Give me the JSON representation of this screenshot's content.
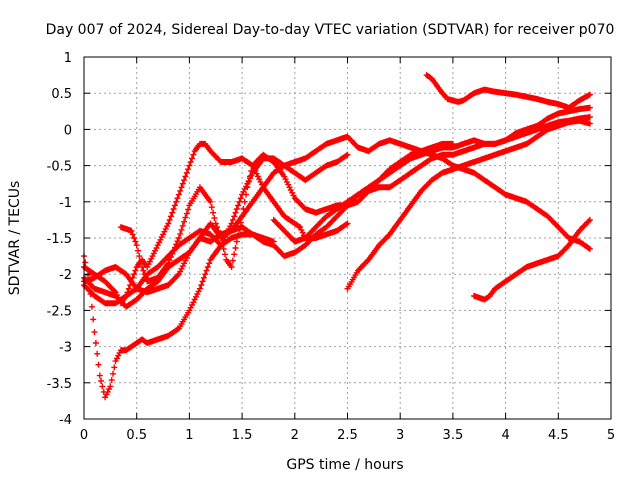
{
  "chart_data": {
    "type": "scatter",
    "title": "Day 007 of 2024, Sidereal Day-to-day VTEC variation (SDTVAR) for receiver p070",
    "xlabel": "GPS time / hours",
    "ylabel": "SDTVAR / TECUs",
    "xlim": [
      0,
      5
    ],
    "ylim": [
      -4,
      1
    ],
    "xticks": [
      0,
      0.5,
      1,
      1.5,
      2,
      2.5,
      3,
      3.5,
      4,
      4.5,
      5
    ],
    "xtick_labels": [
      "0",
      "0.5",
      "1",
      "1.5",
      "2",
      "2.5",
      "3",
      "3.5",
      "4",
      "4.5",
      "5"
    ],
    "yticks": [
      1,
      0.5,
      0,
      -0.5,
      -1,
      -1.5,
      -2,
      -2.5,
      -3,
      -3.5,
      -4
    ],
    "ytick_labels": [
      "1",
      "0.5",
      "0",
      "-0.5",
      "-1",
      "-1.5",
      "-2",
      "-2.5",
      "-3",
      "-3.5",
      "-4"
    ],
    "grid": true,
    "marker": "+",
    "color": "#ff0000",
    "series": [
      {
        "name": "s1",
        "x": [
          0.0,
          0.05,
          0.1,
          0.15,
          0.2,
          0.25,
          0.3,
          0.35,
          0.4,
          0.45,
          0.5,
          0.55,
          0.6,
          0.7,
          0.8,
          0.9,
          1.0,
          1.1,
          1.2,
          1.3,
          1.4,
          1.5,
          1.6,
          1.7,
          1.8
        ],
        "y": [
          -1.75,
          -2.1,
          -2.8,
          -3.4,
          -3.7,
          -3.55,
          -3.2,
          -3.05,
          -3.05,
          -3.0,
          -2.95,
          -2.9,
          -2.95,
          -2.9,
          -2.85,
          -2.75,
          -2.5,
          -2.2,
          -1.8,
          -1.6,
          -1.5,
          -1.45,
          -1.45,
          -1.5,
          -1.55
        ]
      },
      {
        "name": "s2",
        "x": [
          0.0,
          0.1,
          0.2,
          0.3,
          0.35,
          0.4,
          0.45,
          0.5,
          0.55,
          0.6,
          0.7,
          0.8,
          0.9,
          1.0,
          1.05,
          1.1,
          1.15,
          1.2,
          1.3,
          1.4,
          1.5,
          1.6,
          1.7,
          1.8,
          1.9,
          2.0,
          2.05,
          2.1,
          2.2,
          2.3,
          2.4,
          2.5
        ],
        "y": [
          -1.9,
          -2.0,
          -2.1,
          -2.25,
          -2.4,
          -2.3,
          -2.1,
          -1.9,
          -1.8,
          -1.9,
          -1.6,
          -1.3,
          -0.9,
          -0.5,
          -0.3,
          -0.2,
          -0.2,
          -0.3,
          -0.45,
          -0.45,
          -0.4,
          -0.5,
          -0.8,
          -1.0,
          -1.2,
          -1.3,
          -1.35,
          -1.5,
          -1.5,
          -1.45,
          -1.4,
          -1.3
        ]
      },
      {
        "name": "s3",
        "x": [
          0.0,
          0.1,
          0.2,
          0.3,
          0.4,
          0.5,
          0.6,
          0.7,
          0.8,
          0.9,
          1.0,
          1.1,
          1.2,
          1.3,
          1.4,
          1.5,
          1.6,
          1.7,
          1.8,
          1.9,
          2.0,
          2.1,
          2.2,
          2.3,
          2.4,
          2.5
        ],
        "y": [
          -2.15,
          -2.3,
          -2.4,
          -2.4,
          -2.3,
          -2.2,
          -2.0,
          -1.9,
          -1.75,
          -1.6,
          -1.5,
          -1.4,
          -1.45,
          -1.6,
          -1.3,
          -0.9,
          -0.6,
          -0.4,
          -0.4,
          -0.5,
          -0.6,
          -0.7,
          -0.6,
          -0.5,
          -0.45,
          -0.35
        ]
      },
      {
        "name": "s4",
        "x": [
          0.0,
          0.1,
          0.2,
          0.3,
          0.4,
          0.5,
          0.6,
          0.7,
          0.8,
          0.9,
          1.0,
          1.1,
          1.2,
          1.3,
          1.4,
          1.5,
          1.6,
          1.7,
          1.8,
          1.9,
          2.0,
          2.1,
          2.2,
          2.3,
          2.4,
          2.5,
          2.6,
          2.7,
          2.8,
          2.9,
          3.0,
          3.1,
          3.2,
          3.3,
          3.4,
          3.5
        ],
        "y": [
          -2.05,
          -2.2,
          -2.25,
          -2.3,
          -2.45,
          -2.35,
          -2.2,
          -2.1,
          -1.9,
          -1.8,
          -1.7,
          -1.5,
          -1.3,
          -1.5,
          -1.4,
          -1.2,
          -1.0,
          -0.8,
          -0.6,
          -0.5,
          -0.45,
          -0.4,
          -0.3,
          -0.2,
          -0.15,
          -0.1,
          -0.25,
          -0.3,
          -0.2,
          -0.15,
          -0.2,
          -0.25,
          -0.3,
          -0.25,
          -0.2,
          -0.2
        ]
      },
      {
        "name": "s5",
        "x": [
          0.35,
          0.45,
          0.5,
          0.55,
          0.6,
          0.7,
          0.8,
          0.9,
          1.0,
          1.1,
          1.2,
          1.25,
          1.3,
          1.35,
          1.4,
          1.45,
          1.5,
          1.55,
          1.6,
          1.7,
          1.8,
          1.9,
          2.0,
          2.1,
          2.2,
          2.3,
          2.4,
          2.5,
          2.6,
          2.7,
          2.8,
          2.9,
          3.0,
          3.1,
          3.2,
          3.3,
          3.4,
          3.5,
          3.6,
          3.7,
          3.8,
          3.9,
          4.0,
          4.1,
          4.2,
          4.3,
          4.4,
          4.5,
          4.6,
          4.7,
          4.8
        ],
        "y": [
          -1.35,
          -1.4,
          -1.6,
          -1.9,
          -2.1,
          -2.05,
          -1.85,
          -1.5,
          -1.05,
          -0.8,
          -1.0,
          -1.3,
          -1.5,
          -1.8,
          -1.9,
          -1.55,
          -1.2,
          -0.8,
          -0.5,
          -0.35,
          -0.45,
          -0.65,
          -0.95,
          -1.1,
          -1.15,
          -1.1,
          -1.05,
          -1.05,
          -1.0,
          -0.85,
          -0.7,
          -0.55,
          -0.45,
          -0.35,
          -0.3,
          -0.35,
          -0.4,
          -0.5,
          -0.55,
          -0.6,
          -0.7,
          -0.8,
          -0.9,
          -0.95,
          -1.0,
          -1.1,
          -1.2,
          -1.35,
          -1.5,
          -1.55,
          -1.65
        ]
      },
      {
        "name": "s6",
        "x": [
          0.0,
          0.1,
          0.2,
          0.3,
          0.4,
          0.5,
          0.6,
          0.7,
          0.8,
          0.9,
          1.0,
          1.1,
          1.2,
          1.3,
          1.4,
          1.5,
          1.6,
          1.7,
          1.8,
          1.9,
          2.0,
          2.1,
          2.2,
          2.3,
          2.4,
          2.5,
          2.6,
          2.7,
          2.8,
          2.9,
          3.0,
          3.1,
          3.2,
          3.3,
          3.4,
          3.5,
          3.6,
          3.7,
          3.8,
          3.9,
          4.0,
          4.1,
          4.2,
          4.3,
          4.4,
          4.5,
          4.6,
          4.7,
          4.8
        ],
        "y": [
          -2.1,
          -2.05,
          -1.95,
          -1.9,
          -2.0,
          -2.2,
          -2.25,
          -2.2,
          -2.15,
          -2.0,
          -1.7,
          -1.5,
          -1.55,
          -1.45,
          -1.4,
          -1.35,
          -1.45,
          -1.55,
          -1.6,
          -1.75,
          -1.7,
          -1.6,
          -1.45,
          -1.35,
          -1.2,
          -1.05,
          -0.9,
          -0.85,
          -0.8,
          -0.8,
          -0.7,
          -0.6,
          -0.5,
          -0.4,
          -0.35,
          -0.35,
          -0.3,
          -0.25,
          -0.2,
          -0.2,
          -0.15,
          -0.1,
          -0.05,
          0.0,
          0.05,
          0.1,
          0.12,
          0.15,
          0.17
        ]
      },
      {
        "name": "s7",
        "x": [
          1.8,
          1.9,
          2.0,
          2.1,
          2.2,
          2.3,
          2.4,
          2.5,
          2.6,
          2.7,
          2.8,
          2.9,
          3.0,
          3.1,
          3.2,
          3.3,
          3.4,
          3.5,
          3.6,
          3.7,
          3.8,
          3.9,
          4.0,
          4.1,
          4.2,
          4.3,
          4.4,
          4.5,
          4.6,
          4.7,
          4.8
        ],
        "y": [
          -1.25,
          -1.4,
          -1.55,
          -1.5,
          -1.35,
          -1.2,
          -1.1,
          -1.0,
          -0.9,
          -0.8,
          -0.7,
          -0.6,
          -0.5,
          -0.4,
          -0.35,
          -0.3,
          -0.25,
          -0.25,
          -0.2,
          -0.15,
          -0.2,
          -0.2,
          -0.15,
          -0.05,
          0.0,
          0.05,
          0.15,
          0.22,
          0.25,
          0.28,
          0.3
        ]
      },
      {
        "name": "s8",
        "x": [
          2.5,
          2.6,
          2.7,
          2.8,
          2.9,
          3.0,
          3.1,
          3.2,
          3.3,
          3.4,
          3.5,
          3.6,
          3.7,
          3.8,
          3.9,
          4.0,
          4.1,
          4.2,
          4.3,
          4.4,
          4.5,
          4.6,
          4.7,
          4.8
        ],
        "y": [
          -2.2,
          -1.95,
          -1.8,
          -1.6,
          -1.45,
          -1.25,
          -1.05,
          -0.85,
          -0.7,
          -0.6,
          -0.55,
          -0.5,
          -0.45,
          -0.4,
          -0.35,
          -0.3,
          -0.25,
          -0.2,
          -0.1,
          0.0,
          0.05,
          0.1,
          0.12,
          0.08
        ]
      },
      {
        "name": "s9",
        "x": [
          3.25,
          3.3,
          3.35,
          3.4,
          3.45,
          3.5,
          3.55,
          3.6,
          3.7,
          3.8,
          3.9,
          4.0,
          4.1,
          4.2,
          4.3,
          4.4,
          4.5,
          4.6,
          4.7,
          4.8
        ],
        "y": [
          0.75,
          0.7,
          0.6,
          0.5,
          0.42,
          0.4,
          0.38,
          0.4,
          0.5,
          0.55,
          0.52,
          0.5,
          0.48,
          0.45,
          0.42,
          0.38,
          0.35,
          0.3,
          0.4,
          0.48
        ]
      },
      {
        "name": "s10",
        "x": [
          3.7,
          3.8,
          3.85,
          3.9,
          4.0,
          4.1,
          4.2,
          4.3,
          4.4,
          4.5,
          4.6,
          4.7,
          4.8
        ],
        "y": [
          -2.3,
          -2.35,
          -2.3,
          -2.2,
          -2.1,
          -2.0,
          -1.9,
          -1.85,
          -1.8,
          -1.75,
          -1.6,
          -1.4,
          -1.25
        ]
      }
    ]
  }
}
